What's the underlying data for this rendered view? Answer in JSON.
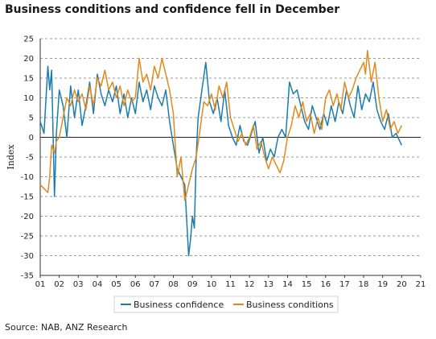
{
  "chart_data": {
    "type": "line",
    "title": "Business conditions and confidence fell in December",
    "ylabel": "Index",
    "xlabel": "",
    "ylim": [
      -35,
      25
    ],
    "yticks": [
      25,
      20,
      15,
      10,
      5,
      0,
      -5,
      -10,
      -15,
      -20,
      -25,
      -30,
      -35
    ],
    "xticks": [
      "01",
      "02",
      "03",
      "04",
      "05",
      "06",
      "07",
      "08",
      "09",
      "10",
      "11",
      "12",
      "13",
      "14",
      "15",
      "16",
      "17",
      "18",
      "19",
      "20",
      "21"
    ],
    "xlim": [
      2001,
      2021
    ],
    "grid": "horizontal-dashed",
    "legend_position": "bottom",
    "source": "Source: NAB, ANZ Research",
    "colors": {
      "Business confidence": "#1b7cad",
      "Business conditions": "#e08a1e"
    },
    "series": [
      {
        "name": "Business confidence",
        "x": [
          2001.0,
          2001.2,
          2001.4,
          2001.5,
          2001.6,
          2001.75,
          2001.85,
          2002.0,
          2002.2,
          2002.4,
          2002.6,
          2002.8,
          2003.0,
          2003.2,
          2003.4,
          2003.6,
          2003.8,
          2004.0,
          2004.2,
          2004.4,
          2004.6,
          2004.8,
          2005.0,
          2005.2,
          2005.4,
          2005.6,
          2005.8,
          2006.0,
          2006.2,
          2006.4,
          2006.6,
          2006.8,
          2007.0,
          2007.2,
          2007.4,
          2007.6,
          2007.8,
          2008.0,
          2008.2,
          2008.4,
          2008.6,
          2008.8,
          2008.9,
          2009.0,
          2009.1,
          2009.2,
          2009.3,
          2009.5,
          2009.7,
          2009.9,
          2010.1,
          2010.3,
          2010.5,
          2010.7,
          2010.9,
          2011.1,
          2011.3,
          2011.5,
          2011.7,
          2011.9,
          2012.1,
          2012.3,
          2012.5,
          2012.7,
          2012.9,
          2013.1,
          2013.3,
          2013.5,
          2013.7,
          2013.9,
          2014.1,
          2014.3,
          2014.5,
          2014.7,
          2014.9,
          2015.1,
          2015.3,
          2015.5,
          2015.7,
          2015.9,
          2016.1,
          2016.3,
          2016.5,
          2016.7,
          2016.9,
          2017.1,
          2017.3,
          2017.5,
          2017.7,
          2017.9,
          2018.1,
          2018.3,
          2018.5,
          2018.7,
          2018.9,
          2019.1,
          2019.3,
          2019.5,
          2019.7,
          2019.9,
          2020.0
        ],
        "values": [
          4,
          1,
          18,
          12,
          17,
          -15,
          1,
          12,
          8,
          0,
          13,
          5,
          12,
          3,
          8,
          14,
          6,
          16,
          11,
          8,
          12,
          9,
          13,
          6,
          11,
          5,
          10,
          6,
          14,
          9,
          12,
          7,
          13,
          10,
          8,
          12,
          4,
          -2,
          -8,
          -10,
          -12,
          -30,
          -26,
          -20,
          -23,
          -5,
          5,
          12,
          19,
          9,
          6,
          10,
          4,
          12,
          3,
          0,
          -2,
          3,
          -1,
          -2,
          1,
          4,
          -4,
          0,
          -6,
          -3,
          -5,
          0,
          2,
          0,
          14,
          11,
          12,
          8,
          4,
          2,
          8,
          5,
          2,
          6,
          3,
          8,
          4,
          9,
          6,
          12,
          8,
          5,
          13,
          7,
          11,
          9,
          14,
          7,
          4,
          2,
          6,
          0,
          1,
          -1,
          -2
        ]
      },
      {
        "name": "Business conditions",
        "x": [
          2001.0,
          2001.2,
          2001.4,
          2001.5,
          2001.6,
          2001.75,
          2001.85,
          2002.0,
          2002.2,
          2002.4,
          2002.6,
          2002.8,
          2003.0,
          2003.2,
          2003.4,
          2003.6,
          2003.8,
          2004.0,
          2004.2,
          2004.4,
          2004.6,
          2004.8,
          2005.0,
          2005.2,
          2005.4,
          2005.6,
          2005.8,
          2006.0,
          2006.2,
          2006.4,
          2006.6,
          2006.8,
          2007.0,
          2007.2,
          2007.4,
          2007.6,
          2007.8,
          2008.0,
          2008.2,
          2008.4,
          2008.6,
          2008.8,
          2009.0,
          2009.2,
          2009.4,
          2009.6,
          2009.8,
          2010.0,
          2010.2,
          2010.4,
          2010.6,
          2010.8,
          2011.0,
          2011.2,
          2011.4,
          2011.6,
          2011.8,
          2012.0,
          2012.2,
          2012.4,
          2012.6,
          2012.8,
          2013.0,
          2013.2,
          2013.4,
          2013.6,
          2013.8,
          2014.0,
          2014.2,
          2014.4,
          2014.6,
          2014.8,
          2015.0,
          2015.2,
          2015.4,
          2015.6,
          2015.8,
          2016.0,
          2016.2,
          2016.4,
          2016.6,
          2016.8,
          2017.0,
          2017.2,
          2017.4,
          2017.6,
          2017.8,
          2018.0,
          2018.1,
          2018.2,
          2018.4,
          2018.6,
          2018.8,
          2019.0,
          2019.2,
          2019.4,
          2019.6,
          2019.8,
          2020.0
        ],
        "values": [
          -12,
          -13,
          -14,
          -10,
          -2,
          -4,
          -1,
          0,
          5,
          10,
          8,
          12,
          9,
          11,
          7,
          13,
          8,
          15,
          13,
          17,
          12,
          14,
          10,
          13,
          8,
          12,
          9,
          10,
          20,
          14,
          16,
          12,
          18,
          15,
          20,
          16,
          12,
          6,
          -10,
          -5,
          -16,
          -12,
          -8,
          -5,
          2,
          9,
          8,
          11,
          7,
          13,
          10,
          14,
          5,
          2,
          -1,
          1,
          -2,
          0,
          3,
          -3,
          -1,
          -5,
          -8,
          -5,
          -7,
          -9,
          -6,
          0,
          3,
          8,
          5,
          9,
          4,
          6,
          1,
          5,
          2,
          10,
          12,
          8,
          11,
          7,
          14,
          10,
          12,
          15,
          17,
          19,
          16,
          22,
          14,
          19,
          10,
          4,
          7,
          2,
          4,
          1,
          3
        ]
      }
    ]
  }
}
